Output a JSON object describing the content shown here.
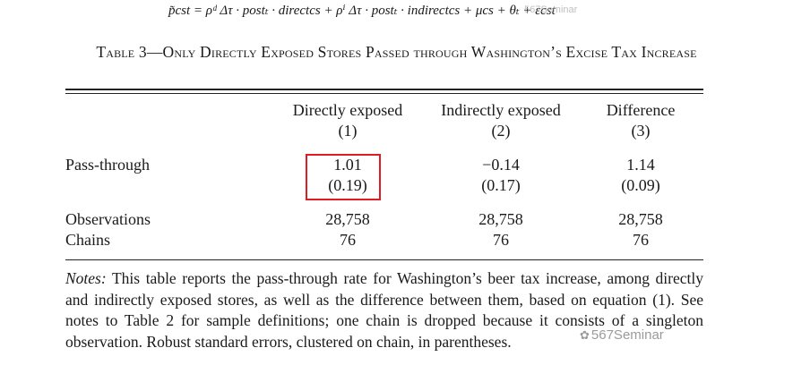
{
  "equation": {
    "text": "p̃cst = ρᵈ Δτ · postₜ · directcs + ρⁱ Δτ · postₜ · indirectcs + μcs + θₜ + εcst"
  },
  "table": {
    "caption": "Table 3—Only Directly Exposed Stores Passed through Washington’s Excise Tax Increase",
    "columns": [
      {
        "label": "Directly exposed",
        "number": "(1)"
      },
      {
        "label": "Indirectly exposed",
        "number": "(2)"
      },
      {
        "label": "Difference",
        "number": "(3)"
      }
    ],
    "rows": {
      "passthrough": {
        "label": "Pass-through",
        "estimates": [
          "1.01",
          "−0.14",
          "1.14"
        ],
        "std_errors": [
          "(0.19)",
          "(0.17)",
          "(0.09)"
        ]
      },
      "observations": {
        "label": "Observations",
        "values": [
          "28,758",
          "28,758",
          "28,758"
        ]
      },
      "chains": {
        "label": "Chains",
        "values": [
          "76",
          "76",
          "76"
        ]
      }
    }
  },
  "notes": {
    "label": "Notes:",
    "text": "This table reports the pass-through rate for Washington’s beer tax increase, among directly and indirectly exposed stores, as well as the difference between them, based on equation (1). See notes to Table 2 for sample definitions; one chain is dropped because it consists of a singleton observation. Robust standard errors, clustered on chain, in parentheses."
  },
  "watermark": {
    "text": "567Seminar",
    "small_text": "567Seminar"
  },
  "colors": {
    "highlight": "#e01b24",
    "text": "#1a1a1a"
  }
}
